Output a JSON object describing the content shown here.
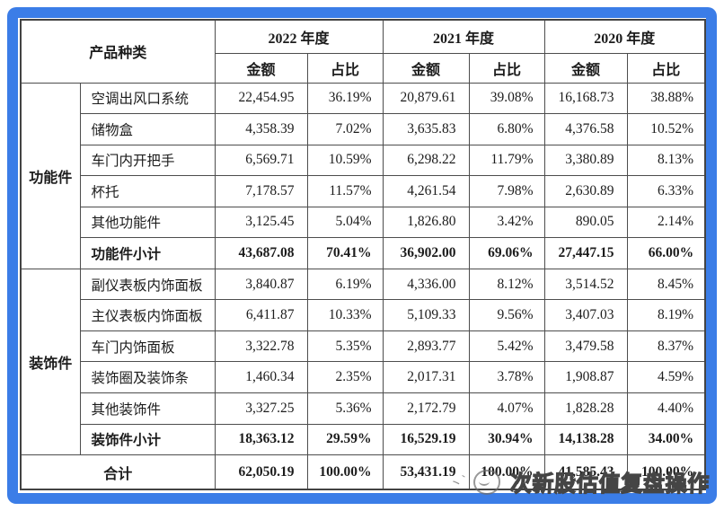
{
  "frame_color": "#3b7de7",
  "watermark": {
    "text": "次新股估值复盘操作"
  },
  "table": {
    "header": {
      "product_category": "产品种类",
      "year_groups": [
        "2022 年度",
        "2021 年度",
        "2020 年度"
      ],
      "sub_labels": [
        "金额",
        "占比",
        "金额",
        "占比",
        "金额",
        "占比"
      ]
    },
    "groups": [
      {
        "name": "功能件",
        "rows": [
          {
            "label": "空调出风口系统",
            "values": [
              "22,454.95",
              "36.19%",
              "20,879.61",
              "39.08%",
              "16,168.73",
              "38.88%"
            ]
          },
          {
            "label": "储物盒",
            "values": [
              "4,358.39",
              "7.02%",
              "3,635.83",
              "6.80%",
              "4,376.58",
              "10.52%"
            ]
          },
          {
            "label": "车门内开把手",
            "values": [
              "6,569.71",
              "10.59%",
              "6,298.22",
              "11.79%",
              "3,380.89",
              "8.13%"
            ]
          },
          {
            "label": "杯托",
            "values": [
              "7,178.57",
              "11.57%",
              "4,261.54",
              "7.98%",
              "2,630.89",
              "6.33%"
            ]
          },
          {
            "label": "其他功能件",
            "values": [
              "3,125.45",
              "5.04%",
              "1,826.80",
              "3.42%",
              "890.05",
              "2.14%"
            ]
          }
        ],
        "subtotal": {
          "label": "功能件小计",
          "values": [
            "43,687.08",
            "70.41%",
            "36,902.00",
            "69.06%",
            "27,447.15",
            "66.00%"
          ]
        }
      },
      {
        "name": "装饰件",
        "rows": [
          {
            "label": "副仪表板内饰面板",
            "values": [
              "3,840.87",
              "6.19%",
              "4,336.00",
              "8.12%",
              "3,514.52",
              "8.45%"
            ]
          },
          {
            "label": "主仪表板内饰面板",
            "values": [
              "6,411.87",
              "10.33%",
              "5,109.33",
              "9.56%",
              "3,407.03",
              "8.19%"
            ]
          },
          {
            "label": "车门内饰面板",
            "values": [
              "3,322.78",
              "5.35%",
              "2,893.77",
              "5.42%",
              "3,479.58",
              "8.37%"
            ]
          },
          {
            "label": "装饰圈及装饰条",
            "values": [
              "1,460.34",
              "2.35%",
              "2,017.31",
              "3.78%",
              "1,908.87",
              "4.59%"
            ]
          },
          {
            "label": "其他装饰件",
            "values": [
              "3,327.25",
              "5.36%",
              "2,172.79",
              "4.07%",
              "1,828.28",
              "4.40%"
            ]
          }
        ],
        "subtotal": {
          "label": "装饰件小计",
          "values": [
            "18,363.12",
            "29.59%",
            "16,529.19",
            "30.94%",
            "14,138.28",
            "34.00%"
          ]
        }
      }
    ],
    "total": {
      "label": "合计",
      "values": [
        "62,050.19",
        "100.00%",
        "53,431.19",
        "100.00%",
        "41,585.43",
        "100.00%"
      ]
    }
  }
}
